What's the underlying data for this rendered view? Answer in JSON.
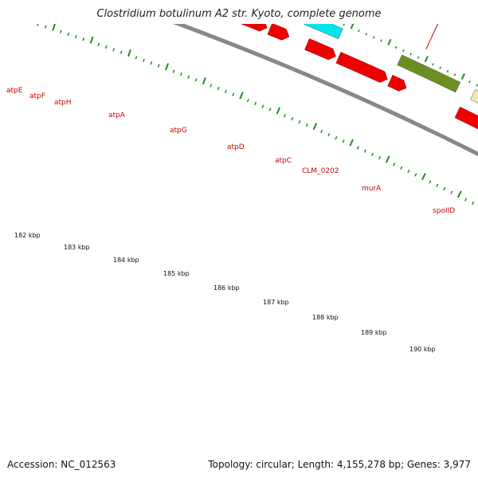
{
  "title": "Clostridium botulinum A2 str. Kyoto, complete genome",
  "footer": {
    "accession": "Accession: NC_012563",
    "summary": "Topology: circular; Length: 4,155,278 bp; Genes: 3,977"
  },
  "colors": {
    "cds": "#ee0000",
    "atp_operon": "#00e5ee",
    "murA": "#6b8e23",
    "spoIID": "#eee8aa",
    "backbone": "#888888",
    "tick": "#228b22",
    "label": "#cc0000"
  },
  "kbp_labels": [
    "182 kbp",
    "183 kbp",
    "184 kbp",
    "185 kbp",
    "186 kbp",
    "187 kbp",
    "188 kbp",
    "189 kbp",
    "190 kbp"
  ],
  "gene_labels": [
    {
      "name": "atpE",
      "color": "atp_operon"
    },
    {
      "name": "atpF",
      "color": "atp_operon"
    },
    {
      "name": "atpH",
      "color": "atp_operon"
    },
    {
      "name": "atpA",
      "color": "atp_operon"
    },
    {
      "name": "atpG",
      "color": "atp_operon"
    },
    {
      "name": "atpD",
      "color": "atp_operon"
    },
    {
      "name": "atpC",
      "color": "atp_operon"
    },
    {
      "name": "CLM_0202",
      "color": "cds"
    },
    {
      "name": "murA",
      "color": "murA"
    },
    {
      "name": "spoIID",
      "color": "spoIID"
    }
  ]
}
